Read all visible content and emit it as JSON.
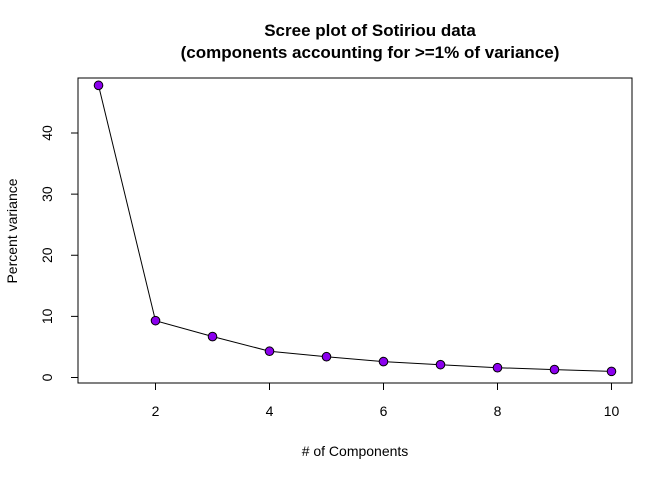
{
  "chart_data": {
    "type": "line",
    "title": "Scree plot of Sotiriou data",
    "subtitle": "(components accounting for >=1% of variance)",
    "xlabel": "# of Components",
    "ylabel": "Percent variance",
    "x": [
      1,
      2,
      3,
      4,
      5,
      6,
      7,
      8,
      9,
      10
    ],
    "y": [
      47.8,
      9.3,
      6.7,
      4.3,
      3.4,
      2.6,
      2.1,
      1.6,
      1.3,
      1.0
    ],
    "xlim": [
      0.64,
      10.36
    ],
    "ylim": [
      -0.9,
      49.0
    ],
    "x_ticks": [
      2,
      4,
      6,
      8,
      10
    ],
    "y_ticks": [
      0,
      10,
      20,
      30,
      40
    ],
    "grid": false,
    "legend": "none",
    "marker_fill": "#8b00ee",
    "marker_edge": "#000000",
    "line_color": "#000000"
  }
}
